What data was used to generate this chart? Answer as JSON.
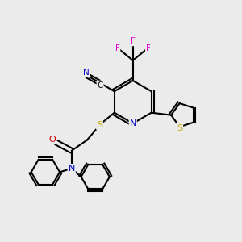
{
  "background_color": "#ebebeb",
  "atom_colors": {
    "C": "#000000",
    "N": "#0000cc",
    "O": "#cc0000",
    "S": "#ccaa00",
    "F": "#dd00dd"
  },
  "figsize": [
    3.0,
    3.0
  ],
  "dpi": 100
}
